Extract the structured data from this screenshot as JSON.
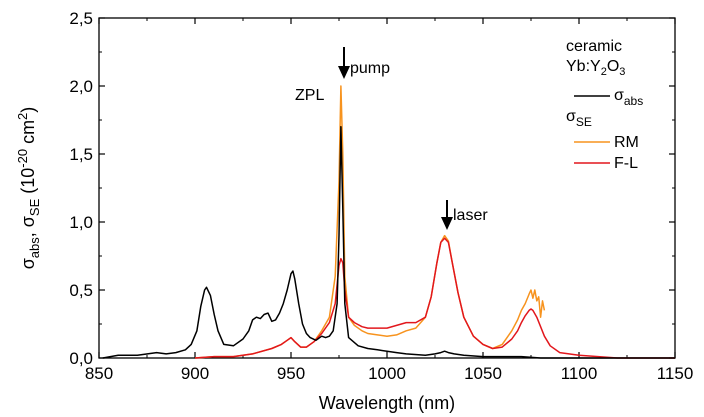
{
  "chart_data": {
    "type": "line",
    "xlabel": "Wavelength (nm)",
    "ylabel": "σabs, σSE (10-20 cm2)",
    "xlim": [
      850,
      1150
    ],
    "ylim": [
      0,
      2.5
    ],
    "x_ticks": [
      850,
      900,
      950,
      1000,
      1050,
      1100,
      1150
    ],
    "y_ticks": [
      "0,0",
      "0,5",
      "1,0",
      "1,5",
      "2,0",
      "2,5"
    ],
    "legend": {
      "placement": "top-right",
      "title_line1": "ceramic",
      "title_line2": "Yb:Y2O3",
      "abs_label": "σabs",
      "se_label": "σSE",
      "entries": [
        "RM",
        "F-L"
      ]
    },
    "annotations": [
      {
        "text": "ZPL",
        "x": 976,
        "y": 2.0
      },
      {
        "text": "pump",
        "x": 976,
        "y": 2.3
      },
      {
        "text": "laser",
        "x": 1031,
        "y": 1.02
      }
    ],
    "colors": {
      "abs": "#000000",
      "rm": "#f7931e",
      "fl": "#e2171d"
    },
    "series": [
      {
        "name": "σabs",
        "x": [
          852,
          860,
          870,
          880,
          885,
          890,
          895,
          898,
          901,
          903,
          905,
          906,
          908,
          910,
          912,
          915,
          920,
          925,
          928,
          930,
          932,
          934,
          936,
          938,
          940,
          942,
          944,
          946,
          948,
          950,
          951,
          952,
          954,
          956,
          958,
          960,
          963,
          966,
          968,
          970,
          972,
          974,
          975,
          976,
          977,
          978,
          980,
          985,
          990,
          995,
          1000,
          1005,
          1010,
          1020,
          1025,
          1028,
          1030,
          1032,
          1035,
          1040,
          1050,
          1060,
          1070,
          1080,
          1090,
          1100,
          1110,
          1120,
          1130,
          1140,
          1150
        ],
        "y": [
          0.0,
          0.02,
          0.02,
          0.04,
          0.03,
          0.04,
          0.06,
          0.1,
          0.2,
          0.38,
          0.5,
          0.52,
          0.46,
          0.32,
          0.2,
          0.1,
          0.09,
          0.14,
          0.2,
          0.28,
          0.3,
          0.29,
          0.32,
          0.33,
          0.27,
          0.28,
          0.33,
          0.4,
          0.5,
          0.62,
          0.64,
          0.58,
          0.4,
          0.25,
          0.18,
          0.15,
          0.13,
          0.16,
          0.15,
          0.16,
          0.2,
          0.4,
          0.9,
          1.7,
          1.1,
          0.4,
          0.15,
          0.09,
          0.07,
          0.06,
          0.05,
          0.04,
          0.03,
          0.02,
          0.03,
          0.04,
          0.05,
          0.04,
          0.03,
          0.02,
          0.01,
          0.01,
          0.01,
          0.0,
          0.0,
          0.0,
          0.0,
          0.0,
          0.0,
          0.0,
          0.0
        ]
      },
      {
        "name": "RM",
        "x": [
          900,
          910,
          920,
          930,
          940,
          945,
          948,
          950,
          952,
          955,
          958,
          962,
          966,
          970,
          973,
          975,
          976,
          977,
          978,
          980,
          983,
          987,
          990,
          995,
          1000,
          1005,
          1010,
          1015,
          1020,
          1023,
          1026,
          1028,
          1030,
          1032,
          1034,
          1037,
          1040,
          1045,
          1050,
          1055,
          1060,
          1065,
          1068,
          1070,
          1072,
          1074,
          1075,
          1076,
          1077,
          1078,
          1079,
          1080,
          1081,
          1082
        ],
        "y": [
          0.0,
          0.01,
          0.01,
          0.03,
          0.07,
          0.1,
          0.13,
          0.15,
          0.12,
          0.08,
          0.08,
          0.12,
          0.2,
          0.3,
          0.6,
          1.3,
          2.0,
          1.5,
          0.6,
          0.3,
          0.24,
          0.2,
          0.18,
          0.17,
          0.16,
          0.17,
          0.2,
          0.22,
          0.3,
          0.45,
          0.7,
          0.85,
          0.9,
          0.86,
          0.7,
          0.48,
          0.3,
          0.16,
          0.1,
          0.07,
          0.1,
          0.2,
          0.28,
          0.35,
          0.4,
          0.47,
          0.5,
          0.44,
          0.5,
          0.42,
          0.45,
          0.3,
          0.42,
          0.35
        ]
      },
      {
        "name": "F-L",
        "x": [
          900,
          910,
          920,
          930,
          940,
          945,
          948,
          950,
          952,
          955,
          958,
          962,
          966,
          970,
          973,
          975,
          976,
          977,
          978,
          980,
          983,
          987,
          990,
          995,
          1000,
          1005,
          1010,
          1015,
          1020,
          1023,
          1026,
          1028,
          1030,
          1032,
          1034,
          1037,
          1040,
          1045,
          1050,
          1055,
          1060,
          1065,
          1068,
          1070,
          1072,
          1074,
          1075,
          1076,
          1078,
          1080,
          1082,
          1085,
          1090,
          1100,
          1110,
          1120,
          1130,
          1140,
          1150
        ],
        "y": [
          0.0,
          0.01,
          0.01,
          0.03,
          0.07,
          0.1,
          0.13,
          0.15,
          0.12,
          0.08,
          0.08,
          0.12,
          0.18,
          0.26,
          0.4,
          0.68,
          0.73,
          0.7,
          0.5,
          0.3,
          0.26,
          0.23,
          0.22,
          0.22,
          0.22,
          0.24,
          0.26,
          0.26,
          0.3,
          0.45,
          0.7,
          0.85,
          0.88,
          0.85,
          0.7,
          0.48,
          0.3,
          0.16,
          0.1,
          0.07,
          0.08,
          0.14,
          0.2,
          0.26,
          0.31,
          0.35,
          0.36,
          0.35,
          0.3,
          0.23,
          0.16,
          0.09,
          0.04,
          0.02,
          0.01,
          0.0,
          0.0,
          0.0,
          0.0
        ]
      }
    ]
  }
}
